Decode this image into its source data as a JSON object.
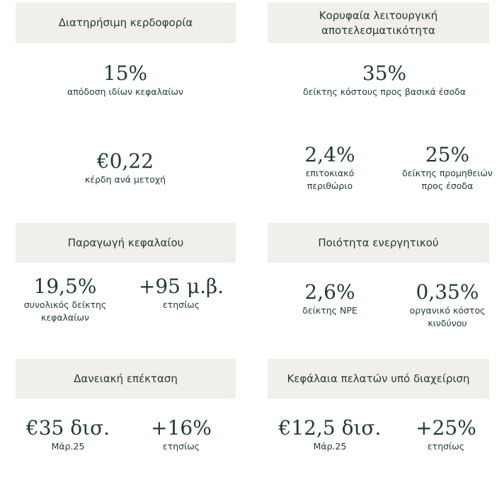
{
  "sections": {
    "profitability": {
      "title": "Διατηρήσιμη κερδοφορία",
      "metrics": [
        {
          "value": "15%",
          "label": "απόδοση ιδίων κεφαλαίων"
        },
        {
          "value": "€0,22",
          "label": "κέρδη ανά μετοχή"
        }
      ]
    },
    "operational": {
      "title": "Κορυφαία λειτουργική αποτελεσματικότητα",
      "metrics": [
        {
          "value": "35%",
          "label": "δείκτης κόστους προς βασικά έσοδα"
        },
        {
          "value": "2,4%",
          "label": "επιτοκιακό περιθώριο"
        },
        {
          "value": "25%",
          "label": "δείκτης προμηθειών προς έσοδα"
        }
      ]
    },
    "capital": {
      "title": "Παραγωγή κεφαλαίου",
      "metrics": [
        {
          "value": "19,5%",
          "label": "συνολικός δείκτης κεφαλαίων"
        },
        {
          "value": "+95 μ.β.",
          "label": "ετησίως"
        }
      ]
    },
    "asset_quality": {
      "title": "Ποιότητα ενεργητικού",
      "metrics": [
        {
          "value": "2,6%",
          "label": "δείκτης NPE"
        },
        {
          "value": "0,35%",
          "label": "οργανικό κόστος κινδύνου"
        }
      ]
    },
    "lending": {
      "title": "Δανειακή επέκταση",
      "metrics": [
        {
          "value": "€35 δισ.",
          "label": "Μάρ.25"
        },
        {
          "value": "+16%",
          "label": "ετησίως"
        }
      ]
    },
    "aum": {
      "title": "Κεφάλαια πελατών υπό διαχείριση",
      "metrics": [
        {
          "value": "€12,5 δισ.",
          "label": "Μάρ.25"
        },
        {
          "value": "+25%",
          "label": "ετησίως"
        }
      ]
    }
  }
}
